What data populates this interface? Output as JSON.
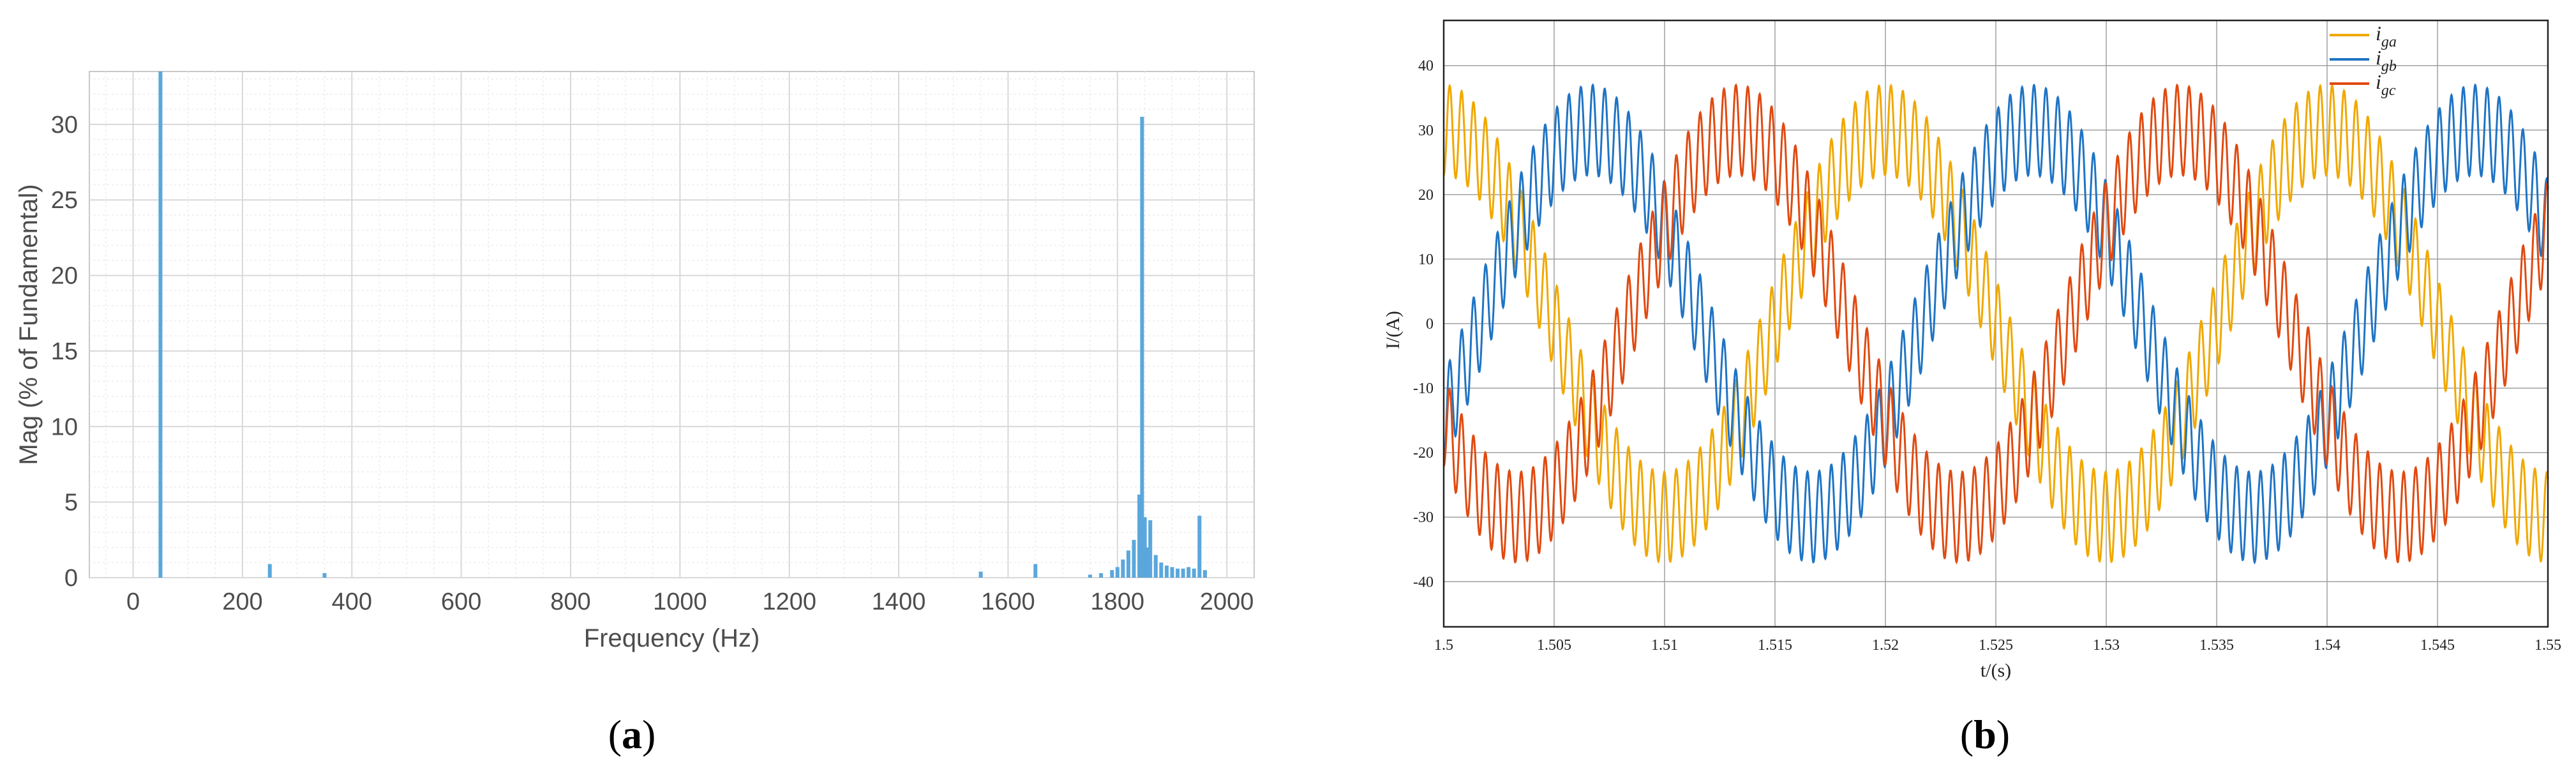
{
  "colors": {
    "spectrum": "#5aa7dc",
    "iga": "#f0a800",
    "igb": "#1f74c4",
    "igc": "#e04a10"
  },
  "captions": {
    "a": "a",
    "b": "b"
  },
  "chart_data": [
    {
      "type": "bar",
      "panel": "a",
      "title": "",
      "xlabel": "Frequency (Hz)",
      "ylabel": "Mag (% of Fundamental)",
      "xlim": [
        -80,
        2050
      ],
      "ylim": [
        0,
        33.5
      ],
      "xticks": [
        0,
        200,
        400,
        600,
        800,
        1000,
        1200,
        1400,
        1600,
        1800,
        2000
      ],
      "yticks": [
        0,
        5,
        10,
        15,
        20,
        25,
        30
      ],
      "grid": true,
      "x": [
        50,
        250,
        350,
        1550,
        1650,
        1750,
        1770,
        1790,
        1800,
        1810,
        1820,
        1830,
        1840,
        1845,
        1850,
        1855,
        1860,
        1870,
        1880,
        1890,
        1900,
        1910,
        1920,
        1930,
        1940,
        1950,
        1960
      ],
      "values": [
        33.5,
        0.9,
        0.3,
        0.4,
        0.9,
        0.2,
        0.3,
        0.5,
        0.7,
        1.2,
        1.8,
        2.5,
        5.5,
        30.5,
        4.0,
        2.0,
        3.8,
        1.5,
        1.0,
        0.8,
        0.7,
        0.6,
        0.6,
        0.7,
        0.6,
        4.1,
        0.5
      ]
    },
    {
      "type": "line",
      "panel": "b",
      "title": "",
      "xlabel": "t/(s)",
      "ylabel": "I/(A)",
      "xlim": [
        1.5,
        1.55
      ],
      "ylim": [
        -47,
        47
      ],
      "xticks": [
        "1.5",
        "1.505",
        "1.51",
        "1.515",
        "1.52",
        "1.525",
        "1.53",
        "1.535",
        "1.54",
        "1.545",
        "1.55"
      ],
      "yticks": [
        40,
        30,
        20,
        10,
        0,
        -10,
        -20,
        -30,
        -40
      ],
      "grid": true,
      "legend_position": "top-right",
      "fundamental_amplitude": 30,
      "ripple_amplitude": 7,
      "fundamental_period": 0.02,
      "ripple_period": 0.00054,
      "series": [
        {
          "name": "i",
          "sub": "ga",
          "color_key": "iga",
          "phase_deg": 90
        },
        {
          "name": "i",
          "sub": "gb",
          "color_key": "igb",
          "phase_deg": -30
        },
        {
          "name": "i",
          "sub": "gc",
          "color_key": "igc",
          "phase_deg": 210
        }
      ]
    }
  ]
}
